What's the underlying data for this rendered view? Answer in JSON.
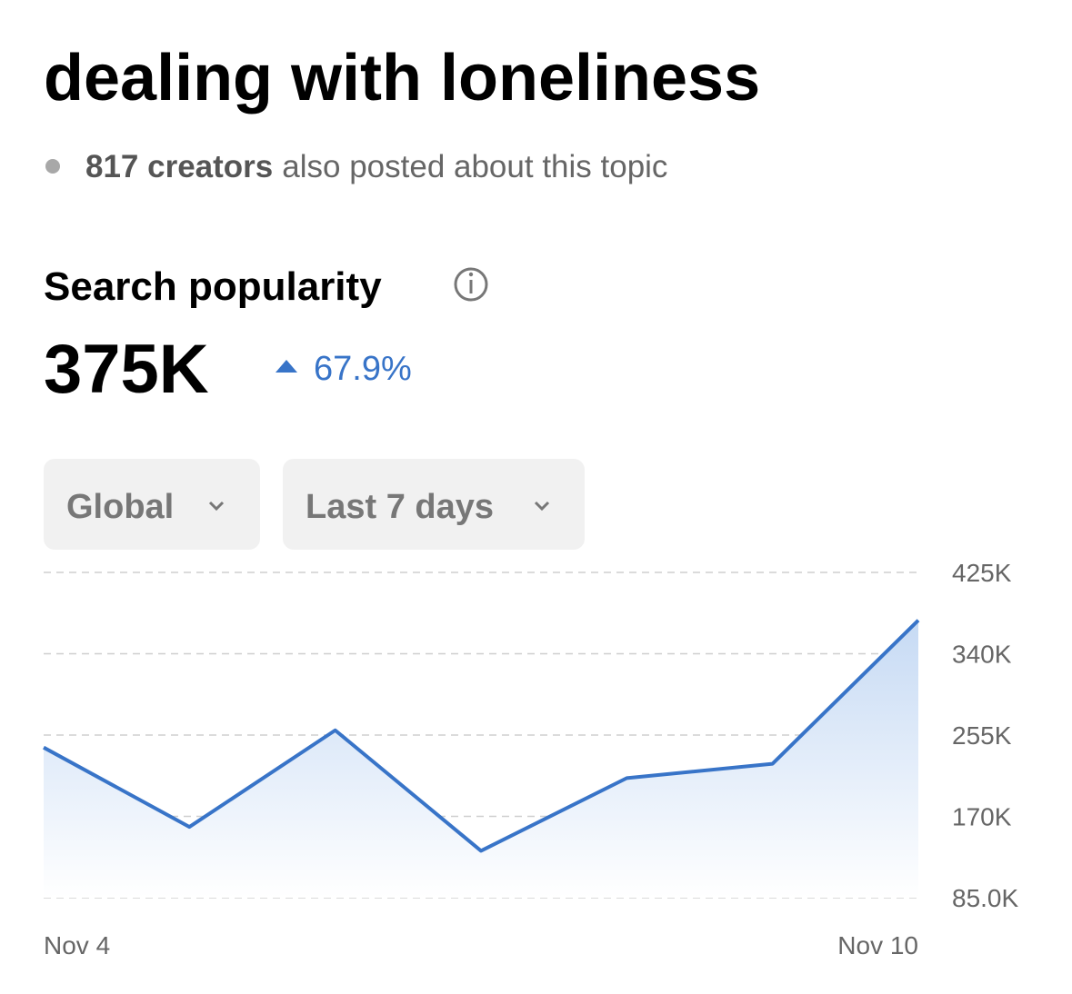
{
  "title": "dealing with loneliness",
  "creators": {
    "count": "817 creators",
    "text": "also posted about this topic"
  },
  "metric": {
    "label": "Search popularity",
    "value": "375K",
    "change": "67.9%"
  },
  "filters": [
    "Global",
    "Last 7 days"
  ],
  "chart_data": {
    "type": "area",
    "categories": [
      "Nov 4",
      null,
      null,
      null,
      null,
      null,
      "Nov 10"
    ],
    "values": [
      242000,
      159000,
      260000,
      134000,
      210000,
      225000,
      375000
    ],
    "color": "#3874c8",
    "ylim": [
      85000,
      425000
    ],
    "yticks": [
      {
        "value": 85000,
        "label": "85.0K"
      },
      {
        "value": 170000,
        "label": "170K"
      },
      {
        "value": 255000,
        "label": "255K"
      },
      {
        "value": 340000,
        "label": "340K"
      },
      {
        "value": 425000,
        "label": "425K"
      }
    ],
    "grid": true
  }
}
